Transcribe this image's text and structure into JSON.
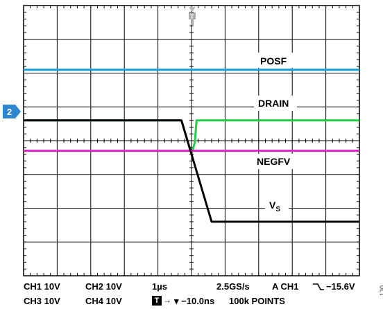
{
  "chart_data": {
    "type": "line",
    "title": "",
    "xlabel": "",
    "ylabel": "",
    "grid": true,
    "time_per_div": "1µs",
    "x_unit": "µs",
    "y_unit": "div",
    "xlim": [
      -5,
      5
    ],
    "ylim": [
      -4,
      4
    ],
    "series": [
      {
        "name": "POSF",
        "color": "#1a9fdc",
        "x": [
          -5,
          5
        ],
        "y": [
          2.1,
          2.1
        ]
      },
      {
        "name": "DRAIN",
        "color": "#22cc44",
        "x": [
          -5,
          -0.3,
          0.0,
          0.1,
          0.15,
          0.3,
          5
        ],
        "y": [
          0.6,
          0.6,
          -0.4,
          -0.05,
          0.6,
          0.6,
          0.6
        ]
      },
      {
        "name": "NEGFV",
        "color": "#dd22cc",
        "x": [
          -5,
          5
        ],
        "y": [
          -0.3,
          -0.3
        ]
      },
      {
        "name": "VS",
        "color": "#000000",
        "x": [
          -5,
          -0.3,
          0.6,
          5
        ],
        "y": [
          0.6,
          0.6,
          -2.4,
          -2.4
        ]
      }
    ],
    "labels": {
      "posf": "POSF",
      "drain": "DRAIN",
      "negfv": "NEGFV",
      "vs_main": "V",
      "vs_sub": "S"
    },
    "channel_marker": "2",
    "trigger_marker": "T"
  },
  "readouts": {
    "row1": {
      "ch1": "CH1  10V",
      "ch2": "CH2  10V",
      "timebase": "1µs",
      "rate": "2.5GS/s",
      "trigger": "A  CH1",
      "level": "−15.6V"
    },
    "row2": {
      "ch3": "CH3  10V",
      "ch4": "CH4  10V",
      "trig_box": "T",
      "delay": "▾ −10.0ns",
      "points": "100k POINTS"
    }
  },
  "figure_number": "130"
}
